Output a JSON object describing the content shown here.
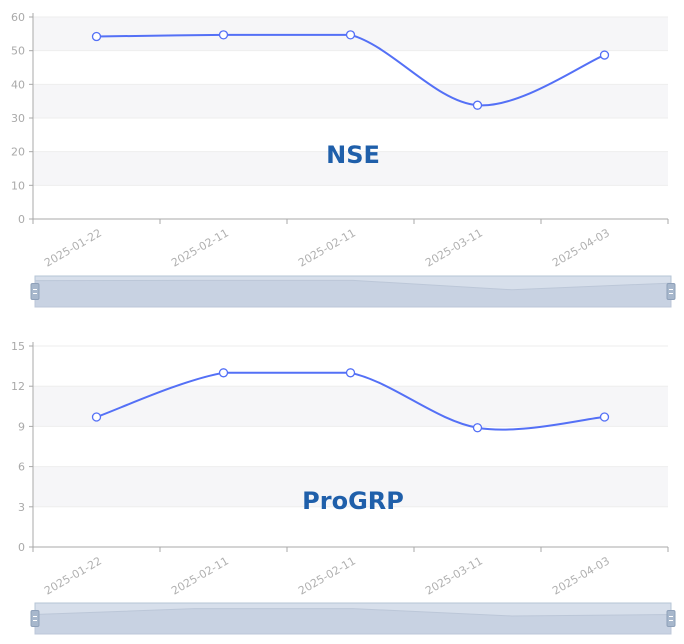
{
  "colors": {
    "line": "#5470f6",
    "title": "#1f5faa",
    "band": "#f6f6f8",
    "axis": "#a9a9a9",
    "tick_text": "#a9a9a9",
    "slider_fill": "#d7dfeb",
    "slider_border": "#b6c4d6",
    "slider_handle": "#a7b7cc"
  },
  "chart_data": [
    {
      "type": "line",
      "title": "NSE",
      "categories": [
        "2025-01-22",
        "2025-02-11",
        "2025-02-11",
        "2025-03-11",
        "2025-04-03"
      ],
      "series": [
        {
          "values": [
            54.2,
            54.7,
            54.7,
            33.8,
            48.7
          ]
        }
      ],
      "ylim": [
        0,
        60
      ],
      "yticks": [
        "0",
        "10",
        "20",
        "30",
        "40",
        "50",
        "60"
      ],
      "smooth": true,
      "alternating_bands": true,
      "has_datazoom_slider": true
    },
    {
      "type": "line",
      "title": "ProGRP",
      "categories": [
        "2025-01-22",
        "2025-02-11",
        "2025-02-11",
        "2025-03-11",
        "2025-04-03"
      ],
      "series": [
        {
          "values": [
            9.7,
            13.0,
            13.0,
            8.9,
            9.7
          ]
        }
      ],
      "ylim": [
        0,
        15
      ],
      "yticks": [
        "0",
        "3",
        "6",
        "9",
        "12",
        "15"
      ],
      "smooth": true,
      "alternating_bands": true,
      "has_datazoom_slider": true
    }
  ]
}
